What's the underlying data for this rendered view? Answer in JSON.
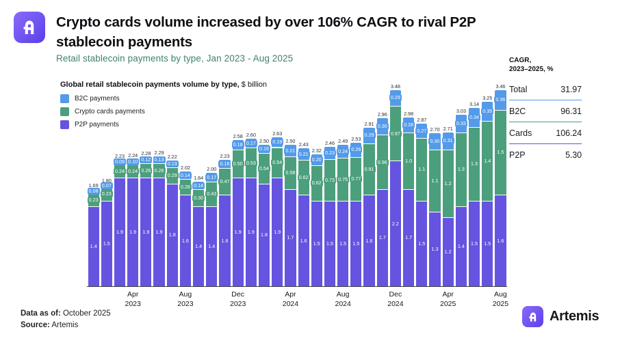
{
  "header": {
    "title_lines": [
      "Crypto cards volume increased by over 106% CAGR to rival P2P",
      "stablecoin payments"
    ],
    "subtitle": "Retail stablecoin payments by type, Jan 2023 - Aug 2025"
  },
  "chart_data": {
    "type": "bar",
    "stacked": true,
    "title_bold": "Global retail stablecoin payments volume by type,",
    "title_unit": " $ billion",
    "grid": false,
    "legend_position": "top-left",
    "ylim": [
      0,
      3.5
    ],
    "unit": "$ billion",
    "categories": [
      "Jan 2023",
      "Feb 2023",
      "Mar 2023",
      "Apr 2023",
      "May 2023",
      "Jun 2023",
      "Jul 2023",
      "Aug 2023",
      "Sep 2023",
      "Oct 2023",
      "Nov 2023",
      "Dec 2023",
      "Jan 2024",
      "Feb 2024",
      "Mar 2024",
      "Apr 2024",
      "May 2024",
      "Jun 2024",
      "Jul 2024",
      "Aug 2024",
      "Sep 2024",
      "Oct 2024",
      "Nov 2024",
      "Dec 2024",
      "Jan 2025",
      "Feb 2025",
      "Mar 2025",
      "Apr 2025",
      "May 2025",
      "Jun 2025",
      "Jul 2025",
      "Aug 2025"
    ],
    "series": [
      {
        "name": "B2C payments",
        "color": "#549AE8",
        "values": [
          "0.08",
          "0.07",
          "0.09",
          "0.10",
          "0.12",
          "0.13",
          "0.13",
          "0.14",
          "0.14",
          "0.17",
          "0.16",
          "0.18",
          "0.17",
          "0.16",
          "0.19",
          "0.21",
          "0.21",
          "0.20",
          "0.23",
          "0.24",
          "0.26",
          "0.29",
          "0.30",
          "0.29",
          "0.28",
          "0.27",
          "0.30",
          "0.31",
          "0.33",
          "0.34",
          "0.35",
          "0.36"
        ]
      },
      {
        "name": "Crypto cards payments",
        "color": "#4C9F7C",
        "values": [
          "0.23",
          "0.23",
          "0.24",
          "0.24",
          "0.26",
          "0.26",
          "0.29",
          "0.28",
          "0.30",
          "0.43",
          "0.47",
          "0.50",
          "0.53",
          "0.54",
          "0.54",
          "0.58",
          "0.62",
          "0.62",
          "0.73",
          "0.75",
          "0.77",
          "0.91",
          "0.96",
          "0.97",
          "1.0",
          "1.1",
          "1.1",
          "1.2",
          "1.3",
          "1.3",
          "1.4",
          "1.5"
        ]
      },
      {
        "name": "P2P payments",
        "color": "#6554E0",
        "values": [
          "1.4",
          "1.5",
          "1.9",
          "1.9",
          "1.9",
          "1.9",
          "1.8",
          "1.6",
          "1.4",
          "1.4",
          "1.6",
          "1.9",
          "1.9",
          "1.8",
          "1.9",
          "1.7",
          "1.6",
          "1.5",
          "1.5",
          "1.5",
          "1.5",
          "1.6",
          "1.7",
          "2.2",
          "1.7",
          "1.5",
          "1.3",
          "1.2",
          "1.4",
          "1.5",
          "1.5",
          "1.6"
        ]
      }
    ],
    "totals": [
      "1.69",
      "1.80",
      "2.23",
      "2.24",
      "2.28",
      "2.29",
      "2.22",
      "2.02",
      "1.84",
      "2.00",
      "2.23",
      "2.58",
      "2.60",
      "2.50",
      "2.63",
      "2.50",
      "2.43",
      "2.32",
      "2.46",
      "2.49",
      "2.53",
      "2.91",
      "2.96",
      "3.48",
      "2.98",
      "2.87",
      "2.70",
      "2.71",
      "3.03",
      "3.14",
      "3.25",
      "3.46"
    ],
    "x_ticks": [
      {
        "index": 3,
        "line1": "Apr",
        "line2": "2023"
      },
      {
        "index": 7,
        "line1": "Aug",
        "line2": "2023"
      },
      {
        "index": 11,
        "line1": "Dec",
        "line2": "2023"
      },
      {
        "index": 15,
        "line1": "Apr",
        "line2": "2024"
      },
      {
        "index": 19,
        "line1": "Aug",
        "line2": "2024"
      },
      {
        "index": 23,
        "line1": "Dec",
        "line2": "2024"
      },
      {
        "index": 27,
        "line1": "Apr",
        "line2": "2025"
      },
      {
        "index": 31,
        "line1": "Aug",
        "line2": "2025"
      }
    ]
  },
  "cagr_table": {
    "header_line1": "CAGR,",
    "header_line2": "2023–2025, %",
    "rows": [
      {
        "label": "Total",
        "value": "31.97",
        "rule_above": null
      },
      {
        "label": "B2C",
        "value": "96.31",
        "rule_above": "#549AE8"
      },
      {
        "label": "Cards",
        "value": "106.24",
        "rule_above": "#4C9F7C"
      },
      {
        "label": "P2P",
        "value": "5.30",
        "rule_above": "#6554E0"
      }
    ]
  },
  "footer": {
    "data_as_of_label": "Data as of:",
    "data_as_of_value": " October 2025",
    "source_label": "Source:",
    "source_value": " Artemis",
    "brand_name": "Artemis"
  },
  "colors": {
    "accent_purple": "#6554E0",
    "accent_green": "#4C9F7C",
    "accent_blue": "#549AE8",
    "subtitle_teal": "#3F8170"
  }
}
